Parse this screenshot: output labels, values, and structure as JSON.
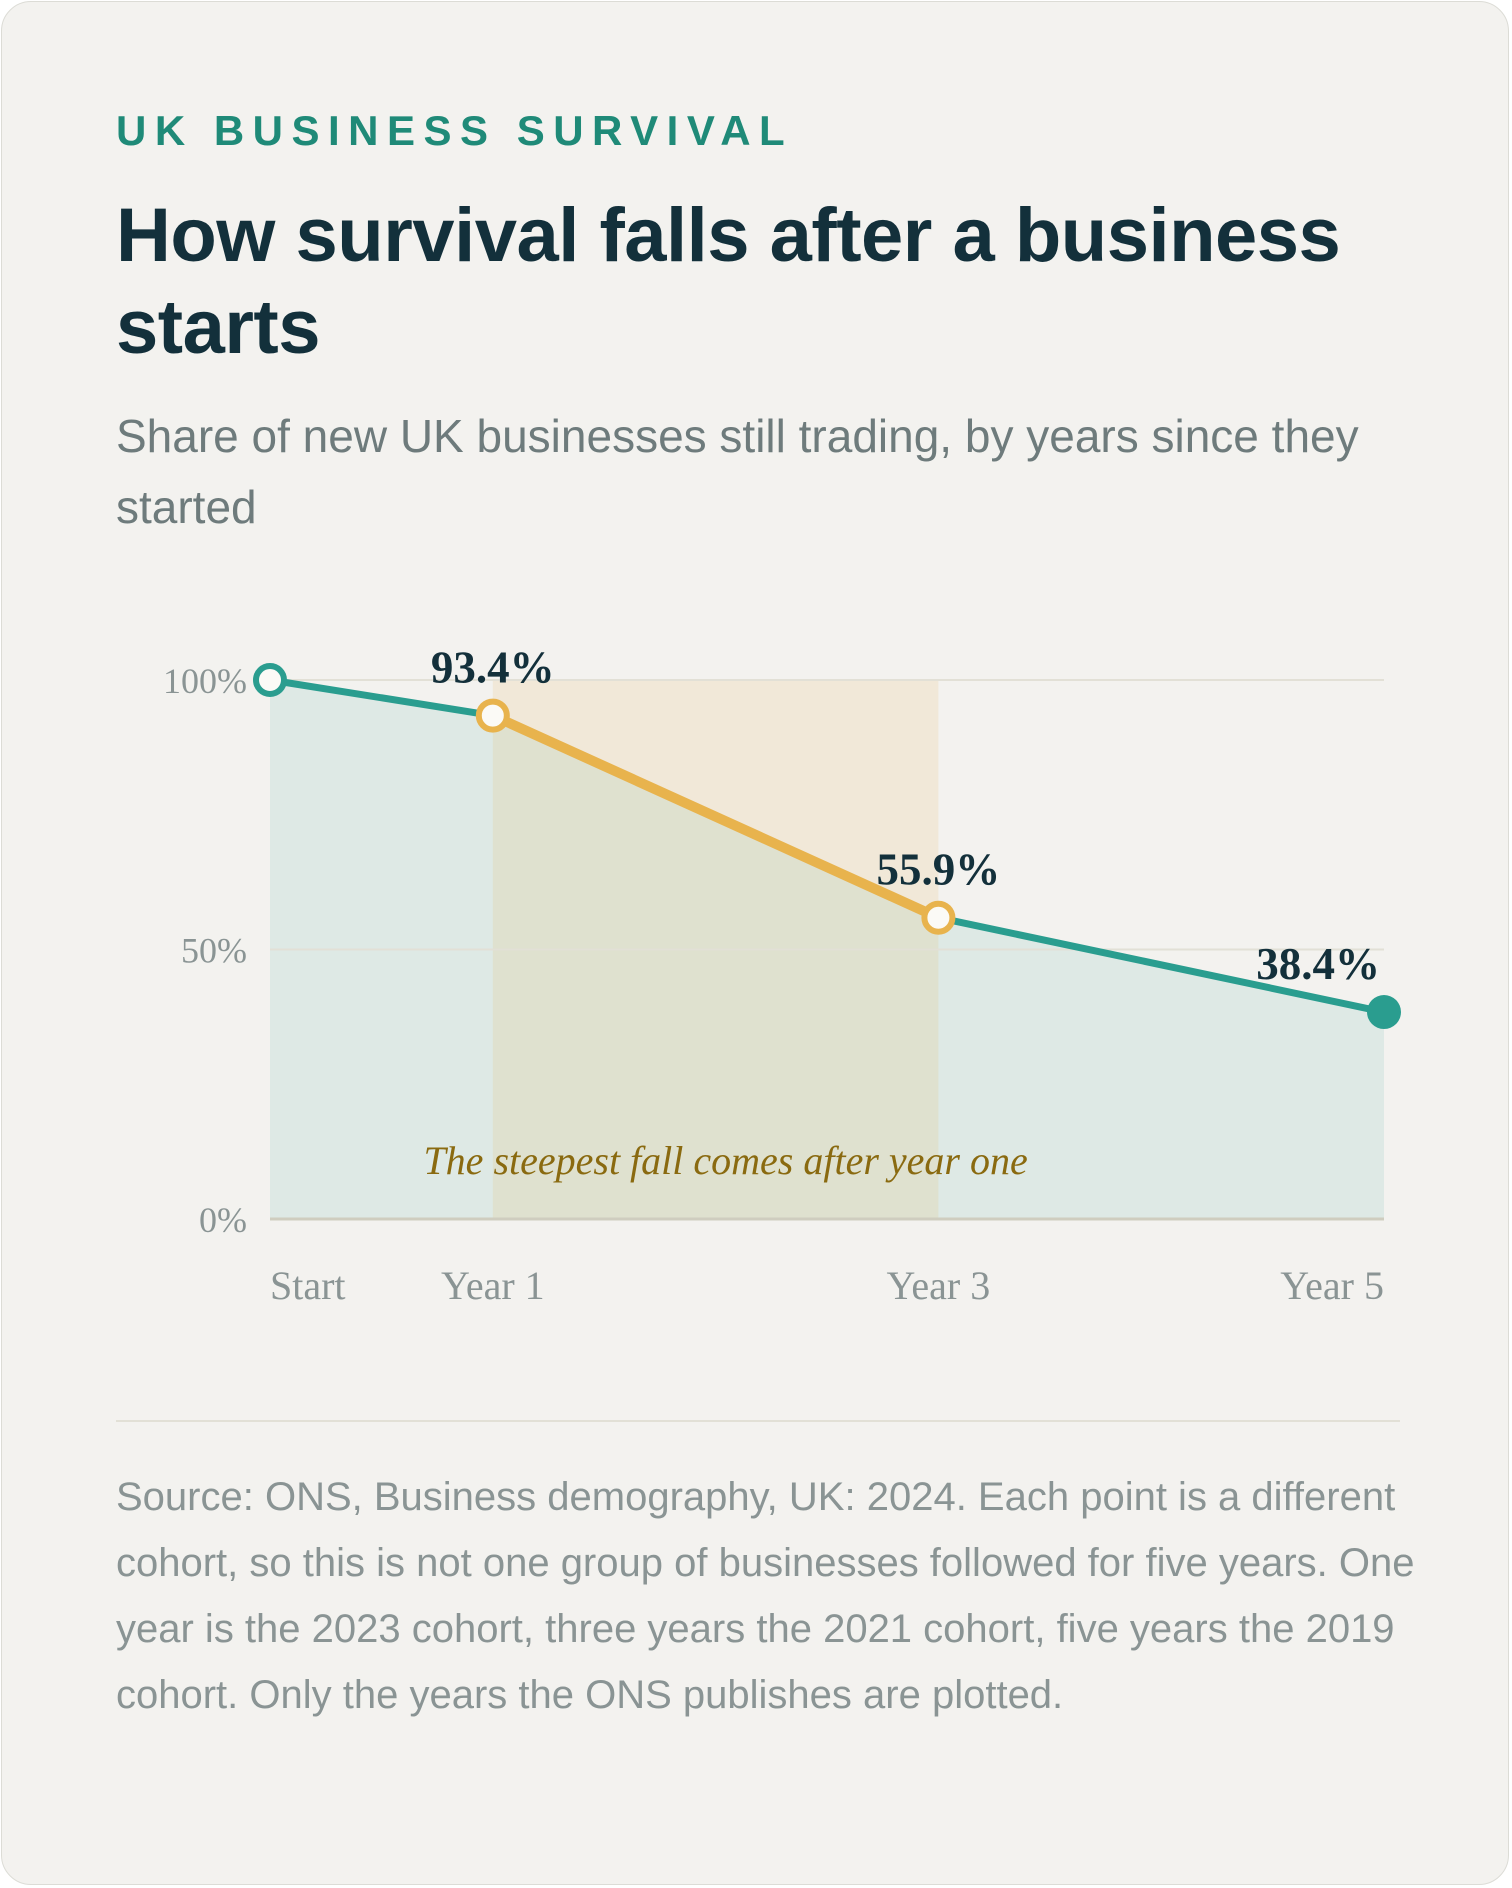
{
  "header": {
    "eyebrow": "UK BUSINESS SURVIVAL",
    "title": "How survival falls after a business starts",
    "subtitle": "Share of new UK businesses still trading, by years since they started"
  },
  "chart_data": {
    "type": "line",
    "x": [
      0,
      1,
      3,
      5
    ],
    "categories": [
      "Start",
      "Year 1",
      "Year 3",
      "Year 5"
    ],
    "values": [
      100,
      93.4,
      55.9,
      38.4
    ],
    "data_labels": [
      "",
      "93.4%",
      "55.9%",
      "38.4%"
    ],
    "ylim": [
      0,
      100
    ],
    "xlim": [
      0,
      5
    ],
    "yticks": [
      0,
      50,
      100
    ],
    "ytick_labels": [
      "0%",
      "50%",
      "100%"
    ],
    "highlight_range": [
      1,
      3
    ],
    "annotation": "The steepest fall comes after year one",
    "grid": true,
    "colors": {
      "line": "#2a9d8f",
      "highlight": "#e8b34d",
      "annotation": "#8a6a10",
      "label": "#13303b",
      "tick": "#8a9494"
    }
  },
  "footer": {
    "note": "Source: ONS, Business demography, UK: 2024. Each point is a different cohort, so this is not one group of businesses followed for five years. One year is the 2023 cohort, three years the 2021 cohort, five years the 2019 cohort. Only the years the ONS publishes are plotted."
  }
}
